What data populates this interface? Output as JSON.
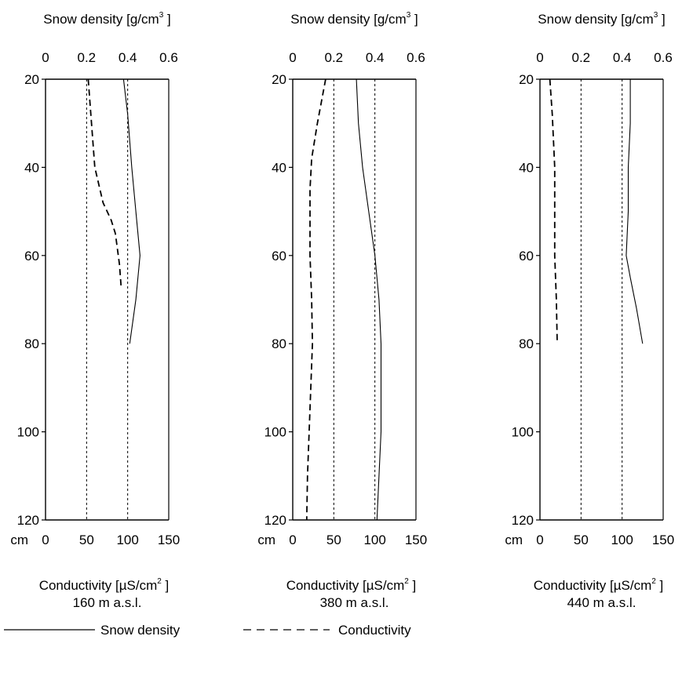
{
  "legend": {
    "snow_density_label": "Snow density",
    "conductivity_label": "Conductivity"
  },
  "chart_data": [
    {
      "type": "line",
      "site_label": "160 m a.s.l.",
      "top_axis": {
        "label_prefix": "Snow density [g/cm",
        "label_exponent": "3",
        "label_suffix": " ]",
        "ticks": [
          "0",
          "0.2",
          "0.4",
          "0.6"
        ],
        "range": [
          0,
          0.6
        ]
      },
      "bottom_axis": {
        "unit": "cm",
        "label_prefix": "Conductivity [µS/cm",
        "label_exponent": "2",
        "label_suffix": " ]",
        "ticks": [
          "0",
          "50",
          "100",
          "150"
        ],
        "range": [
          0,
          150
        ]
      },
      "y_axis": {
        "ticks": [
          "20",
          "40",
          "60",
          "80",
          "100",
          "120"
        ],
        "range": [
          20,
          120
        ],
        "inverted": true
      },
      "gridlines_x_conductivity": [
        50,
        100
      ],
      "series": [
        {
          "key": "density",
          "style": "solid",
          "axis": "top",
          "points": [
            [
              0.38,
              20
            ],
            [
              0.4,
              28
            ],
            [
              0.42,
              40
            ],
            [
              0.44,
              50
            ],
            [
              0.46,
              60
            ],
            [
              0.44,
              70
            ],
            [
              0.41,
              80
            ]
          ]
        },
        {
          "key": "conductivity",
          "style": "dashed",
          "axis": "bottom",
          "points": [
            [
              52,
              20
            ],
            [
              56,
              30
            ],
            [
              60,
              40
            ],
            [
              70,
              48
            ],
            [
              80,
              52
            ],
            [
              85,
              55
            ],
            [
              90,
              62
            ],
            [
              92,
              67
            ]
          ]
        }
      ]
    },
    {
      "type": "line",
      "site_label": "380 m a.s.l.",
      "top_axis": {
        "label_prefix": "Snow density [g/cm",
        "label_exponent": "3",
        "label_suffix": " ]",
        "ticks": [
          "0",
          "0.2",
          "0.4",
          "0.6"
        ],
        "range": [
          0,
          0.6
        ]
      },
      "bottom_axis": {
        "unit": "cm",
        "label_prefix": "Conductivity [µS/cm",
        "label_exponent": "2",
        "label_suffix": " ]",
        "ticks": [
          "0",
          "50",
          "100",
          "150"
        ],
        "range": [
          0,
          150
        ]
      },
      "y_axis": {
        "ticks": [
          "20",
          "40",
          "60",
          "80",
          "100",
          "120"
        ],
        "range": [
          20,
          120
        ],
        "inverted": true
      },
      "gridlines_x_conductivity": [
        50,
        100
      ],
      "series": [
        {
          "key": "density",
          "style": "solid",
          "axis": "top",
          "points": [
            [
              0.31,
              20
            ],
            [
              0.32,
              30
            ],
            [
              0.34,
              40
            ],
            [
              0.37,
              50
            ],
            [
              0.4,
              60
            ],
            [
              0.42,
              70
            ],
            [
              0.43,
              80
            ],
            [
              0.43,
              90
            ],
            [
              0.43,
              100
            ],
            [
              0.42,
              110
            ],
            [
              0.41,
              120
            ]
          ]
        },
        {
          "key": "conductivity",
          "style": "dashed",
          "axis": "bottom",
          "points": [
            [
              40,
              20
            ],
            [
              30,
              30
            ],
            [
              23,
              38
            ],
            [
              21,
              45
            ],
            [
              21,
              60
            ],
            [
              23,
              70
            ],
            [
              24,
              80
            ],
            [
              22,
              90
            ],
            [
              20,
              100
            ],
            [
              18,
              110
            ],
            [
              17,
              120
            ]
          ]
        }
      ]
    },
    {
      "type": "line",
      "site_label": "440 m a.s.l.",
      "top_axis": {
        "label_prefix": "Snow density [g/cm",
        "label_exponent": "3",
        "label_suffix": " ]",
        "ticks": [
          "0",
          "0.2",
          "0.4",
          "0.6"
        ],
        "range": [
          0,
          0.6
        ]
      },
      "bottom_axis": {
        "unit": "cm",
        "label_prefix": "Conductivity [µS/cm",
        "label_exponent": "2",
        "label_suffix": " ]",
        "ticks": [
          "0",
          "50",
          "100",
          "150"
        ],
        "range": [
          0,
          150
        ]
      },
      "y_axis": {
        "ticks": [
          "20",
          "40",
          "60",
          "80",
          "100",
          "120"
        ],
        "range": [
          20,
          120
        ],
        "inverted": true
      },
      "gridlines_x_conductivity": [
        50,
        100
      ],
      "series": [
        {
          "key": "density",
          "style": "solid",
          "axis": "top",
          "points": [
            [
              0.44,
              20
            ],
            [
              0.44,
              30
            ],
            [
              0.43,
              40
            ],
            [
              0.43,
              50
            ],
            [
              0.42,
              60
            ],
            [
              0.44,
              65
            ],
            [
              0.47,
              72
            ],
            [
              0.5,
              80
            ]
          ]
        },
        {
          "key": "conductivity",
          "style": "dashed",
          "axis": "bottom",
          "points": [
            [
              12,
              20
            ],
            [
              15,
              28
            ],
            [
              18,
              40
            ],
            [
              18,
              60
            ],
            [
              20,
              70
            ],
            [
              21,
              80
            ]
          ]
        }
      ]
    }
  ]
}
